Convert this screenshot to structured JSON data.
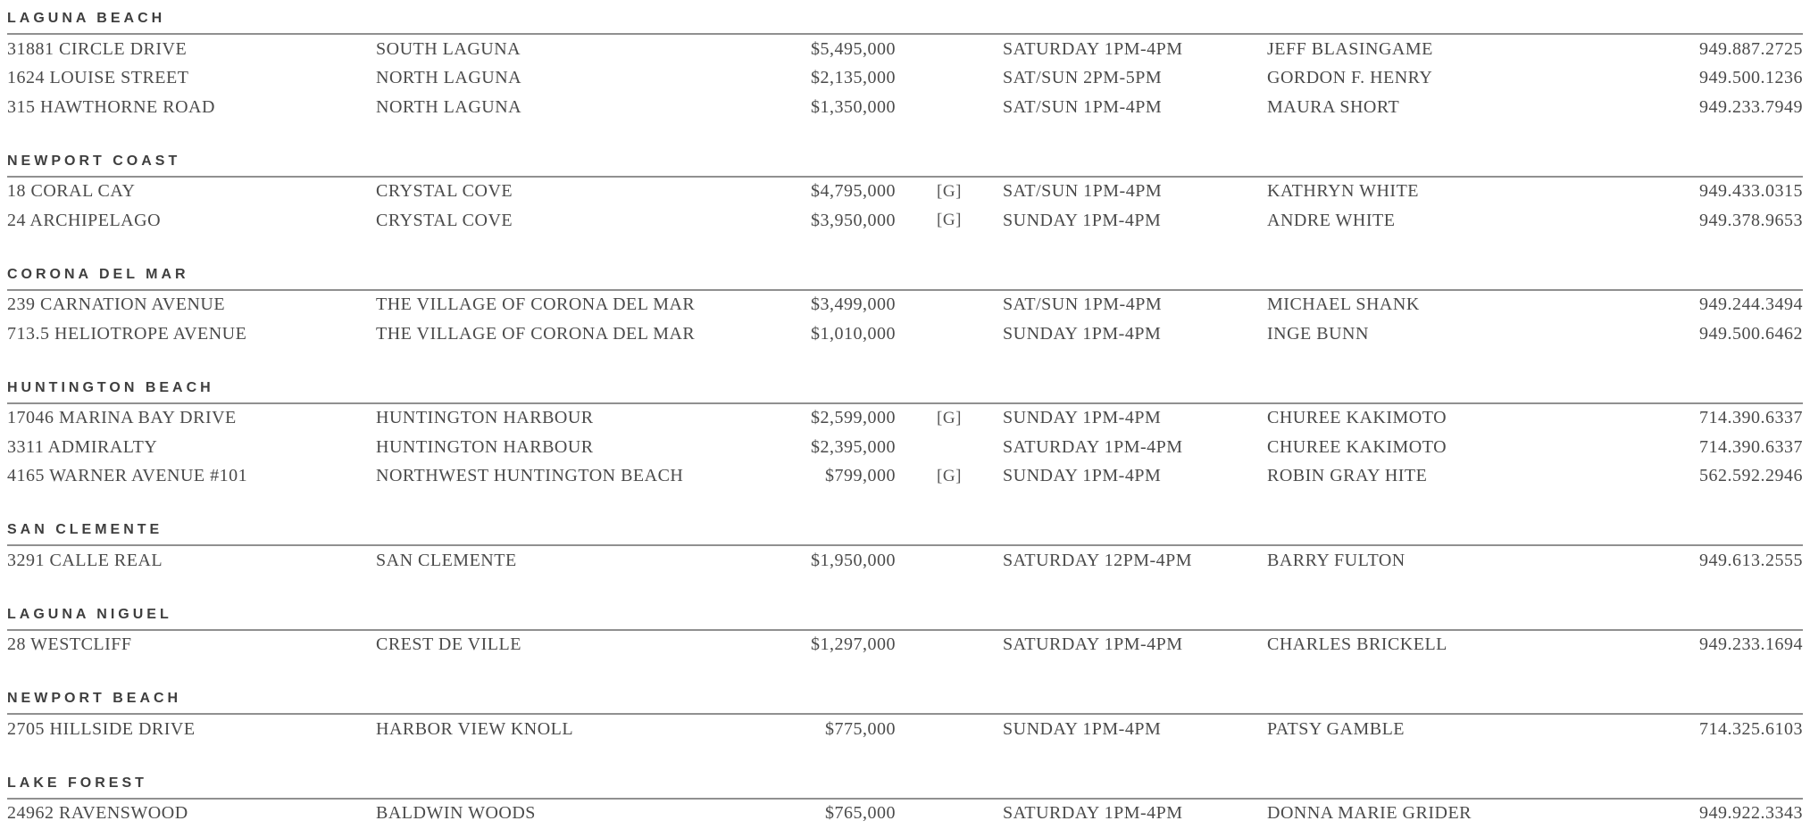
{
  "colors": {
    "text": "#4a4a4a",
    "heading": "#3e3e3e",
    "rule": "#909090",
    "background": "#ffffff"
  },
  "sections": [
    {
      "name": "LAGUNA BEACH",
      "listings": [
        {
          "address": "31881 CIRCLE DRIVE",
          "area": "SOUTH LAGUNA",
          "price": "$5,495,000",
          "g": "",
          "time": "SATURDAY 1PM-4PM",
          "agent": "JEFF BLASINGAME",
          "phone": "949.887.2725"
        },
        {
          "address": "1624 LOUISE STREET",
          "area": "NORTH LAGUNA",
          "price": "$2,135,000",
          "g": "",
          "time": "SAT/SUN 2PM-5PM",
          "agent": "GORDON F. HENRY",
          "phone": "949.500.1236"
        },
        {
          "address": "315 HAWTHORNE ROAD",
          "area": "NORTH LAGUNA",
          "price": "$1,350,000",
          "g": "",
          "time": "SAT/SUN 1PM-4PM",
          "agent": "MAURA SHORT",
          "phone": "949.233.7949"
        }
      ]
    },
    {
      "name": "NEWPORT COAST",
      "listings": [
        {
          "address": "18 CORAL CAY",
          "area": "CRYSTAL COVE",
          "price": "$4,795,000",
          "g": "[G]",
          "time": "SAT/SUN 1PM-4PM",
          "agent": "KATHRYN WHITE",
          "phone": "949.433.0315"
        },
        {
          "address": "24 ARCHIPELAGO",
          "area": "CRYSTAL COVE",
          "price": "$3,950,000",
          "g": "[G]",
          "time": "SUNDAY 1PM-4PM",
          "agent": "ANDRE WHITE",
          "phone": "949.378.9653"
        }
      ]
    },
    {
      "name": "CORONA DEL MAR",
      "listings": [
        {
          "address": "239 CARNATION AVENUE",
          "area": "THE VILLAGE OF CORONA DEL MAR",
          "price": "$3,499,000",
          "g": "",
          "time": "SAT/SUN 1PM-4PM",
          "agent": "MICHAEL SHANK",
          "phone": "949.244.3494"
        },
        {
          "address": "713.5 HELIOTROPE AVENUE",
          "area": "THE VILLAGE OF CORONA DEL MAR",
          "price": "$1,010,000",
          "g": "",
          "time": "SUNDAY 1PM-4PM",
          "agent": "INGE BUNN",
          "phone": "949.500.6462"
        }
      ]
    },
    {
      "name": "HUNTINGTON BEACH",
      "listings": [
        {
          "address": "17046 MARINA BAY DRIVE",
          "area": "HUNTINGTON HARBOUR",
          "price": "$2,599,000",
          "g": "[G]",
          "time": "SUNDAY 1PM-4PM",
          "agent": "CHUREE KAKIMOTO",
          "phone": "714.390.6337"
        },
        {
          "address": "3311 ADMIRALTY",
          "area": "HUNTINGTON HARBOUR",
          "price": "$2,395,000",
          "g": "",
          "time": "SATURDAY 1PM-4PM",
          "agent": "CHUREE KAKIMOTO",
          "phone": "714.390.6337"
        },
        {
          "address": "4165 WARNER AVENUE #101",
          "area": "NORTHWEST HUNTINGTON BEACH",
          "price": "$799,000",
          "g": "[G]",
          "time": "SUNDAY 1PM-4PM",
          "agent": "ROBIN GRAY HITE",
          "phone": "562.592.2946"
        }
      ]
    },
    {
      "name": "SAN CLEMENTE",
      "listings": [
        {
          "address": "3291 CALLE REAL",
          "area": "SAN CLEMENTE",
          "price": "$1,950,000",
          "g": "",
          "time": "SATURDAY 12PM-4PM",
          "agent": "BARRY FULTON",
          "phone": "949.613.2555"
        }
      ]
    },
    {
      "name": "LAGUNA NIGUEL",
      "listings": [
        {
          "address": "28 WESTCLIFF",
          "area": "CREST DE VILLE",
          "price": "$1,297,000",
          "g": "",
          "time": "SATURDAY 1PM-4PM",
          "agent": "CHARLES BRICKELL",
          "phone": "949.233.1694"
        }
      ]
    },
    {
      "name": "NEWPORT BEACH",
      "listings": [
        {
          "address": "2705 HILLSIDE DRIVE",
          "area": "HARBOR VIEW KNOLL",
          "price": "$775,000",
          "g": "",
          "time": "SUNDAY 1PM-4PM",
          "agent": "PATSY GAMBLE",
          "phone": "714.325.6103"
        }
      ]
    },
    {
      "name": "LAKE FOREST",
      "listings": [
        {
          "address": "24962 RAVENSWOOD",
          "area": "BALDWIN WOODS",
          "price": "$765,000",
          "g": "",
          "time": "SATURDAY 1PM-4PM",
          "agent": "DONNA MARIE GRIDER",
          "phone": "949.922.3343"
        }
      ]
    }
  ]
}
